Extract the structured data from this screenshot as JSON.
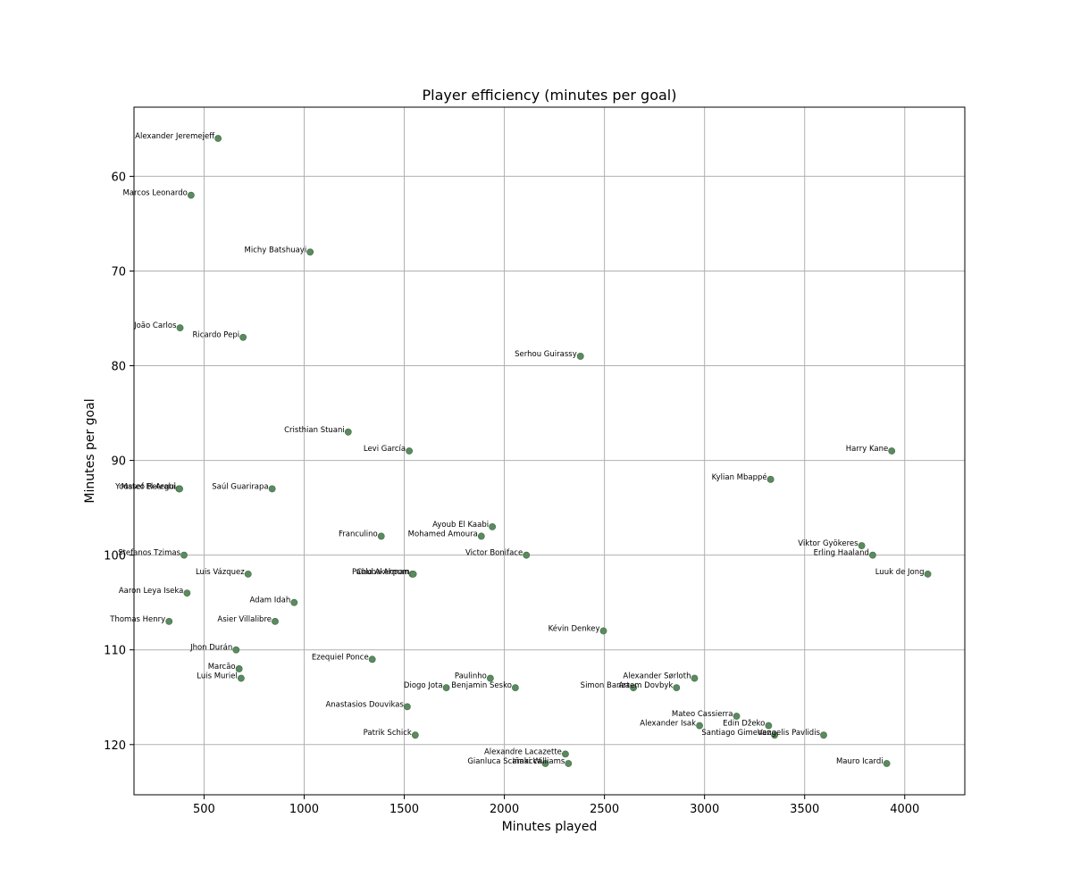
{
  "chart_data": {
    "type": "scatter",
    "title": "Player efficiency (minutes per goal)",
    "xlabel": "Minutes played",
    "ylabel": "Minutes per goal",
    "xlim": [
      150,
      4300
    ],
    "ylim": [
      125.3,
      52.7
    ],
    "y_inverted": true,
    "x_ticks": [
      500,
      1000,
      1500,
      2000,
      2500,
      3000,
      3500,
      4000
    ],
    "y_ticks": [
      60,
      70,
      80,
      90,
      100,
      110,
      120
    ],
    "grid": true,
    "point_color": "#5b8a5f",
    "points": [
      {
        "label": "Alexander Jeremejeff",
        "x": 570,
        "y": 56
      },
      {
        "label": "Marcos Leonardo",
        "x": 435,
        "y": 62
      },
      {
        "label": "Michy Batshuayi",
        "x": 1030,
        "y": 68
      },
      {
        "label": "João Carlos",
        "x": 380,
        "y": 76
      },
      {
        "label": "Ricardo Pepi",
        "x": 695,
        "y": 77
      },
      {
        "label": "Serhou Guirassy",
        "x": 2380,
        "y": 79
      },
      {
        "label": "Cristhian Stuani",
        "x": 1220,
        "y": 87
      },
      {
        "label": "Levi García",
        "x": 1525,
        "y": 89
      },
      {
        "label": "Harry Kane",
        "x": 3935,
        "y": 89
      },
      {
        "label": "Kylian Mbappé",
        "x": 3330,
        "y": 92
      },
      {
        "label": "Youssef El-Arabi",
        "x": 375,
        "y": 93
      },
      {
        "label": "Mateo Retegui",
        "x": 378,
        "y": 93
      },
      {
        "label": "Saúl Guarirapa",
        "x": 840,
        "y": 93
      },
      {
        "label": "Ayoub El Kaabi",
        "x": 1940,
        "y": 97
      },
      {
        "label": "Franculino",
        "x": 1385,
        "y": 98
      },
      {
        "label": "Mohamed Amoura",
        "x": 1885,
        "y": 98
      },
      {
        "label": "Viktor Gyökeres",
        "x": 3785,
        "y": 99
      },
      {
        "label": "Stefanos Tzimas",
        "x": 400,
        "y": 100
      },
      {
        "label": "Victor Boniface",
        "x": 2110,
        "y": 100
      },
      {
        "label": "Erling Haaland",
        "x": 3840,
        "y": 100
      },
      {
        "label": "Luis Vázquez",
        "x": 720,
        "y": 102
      },
      {
        "label": "Paulo Akerman",
        "x": 1540,
        "y": 102
      },
      {
        "label": "Chuba Akpom",
        "x": 1545,
        "y": 102
      },
      {
        "label": "Luuk de Jong",
        "x": 4115,
        "y": 102
      },
      {
        "label": "Aaron Leya Iseka",
        "x": 415,
        "y": 104
      },
      {
        "label": "Adam Idah",
        "x": 950,
        "y": 105
      },
      {
        "label": "Thomas Henry",
        "x": 325,
        "y": 107
      },
      {
        "label": "Asier Villalibre",
        "x": 855,
        "y": 107
      },
      {
        "label": "Kévin Denkey",
        "x": 2495,
        "y": 108
      },
      {
        "label": "Jhon Durán",
        "x": 660,
        "y": 110
      },
      {
        "label": "Ezequiel Ponce",
        "x": 1340,
        "y": 111
      },
      {
        "label": "Marcão",
        "x": 675,
        "y": 112
      },
      {
        "label": "Luis Muriel",
        "x": 685,
        "y": 113
      },
      {
        "label": "Paulinho",
        "x": 1930,
        "y": 113
      },
      {
        "label": "Alexander Sørloth",
        "x": 2950,
        "y": 113
      },
      {
        "label": "Diogo Jota",
        "x": 1710,
        "y": 114
      },
      {
        "label": "Benjamin Sesko",
        "x": 2055,
        "y": 114
      },
      {
        "label": "Simon Banza",
        "x": 2645,
        "y": 114
      },
      {
        "label": "Artem Dovbyk",
        "x": 2860,
        "y": 114
      },
      {
        "label": "Anastasios Douvikas",
        "x": 1515,
        "y": 116
      },
      {
        "label": "Mateo Cassierra",
        "x": 3160,
        "y": 117
      },
      {
        "label": "Alexander Isak",
        "x": 2975,
        "y": 118
      },
      {
        "label": "Edin Džeko",
        "x": 3320,
        "y": 118
      },
      {
        "label": "Patrik Schick",
        "x": 1555,
        "y": 119
      },
      {
        "label": "Santiago Gimenez",
        "x": 3350,
        "y": 119
      },
      {
        "label": "Vangelis Pavlidis",
        "x": 3595,
        "y": 119
      },
      {
        "label": "Alexandre Lacazette",
        "x": 2305,
        "y": 121
      },
      {
        "label": "Gianluca Scamacca",
        "x": 2205,
        "y": 122
      },
      {
        "label": "Iñaki Williams",
        "x": 2320,
        "y": 122
      },
      {
        "label": "Mauro Icardi",
        "x": 3910,
        "y": 122
      }
    ]
  }
}
